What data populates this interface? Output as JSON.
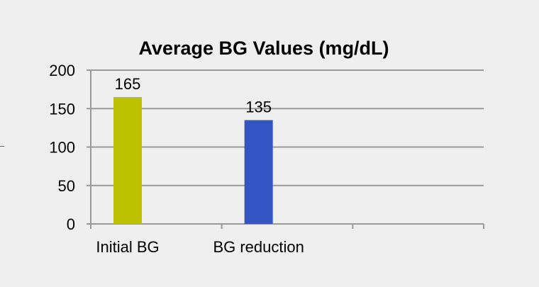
{
  "chart_data": {
    "type": "bar",
    "title": "Average BG Values (mg/dL)",
    "categories": [
      "Initial BG",
      "BG reduction",
      ""
    ],
    "values": [
      165,
      135,
      null
    ],
    "data_labels": [
      "165",
      "135",
      ""
    ],
    "bar_colors": [
      "#bcc200",
      "#3355c4"
    ],
    "ylim": [
      0,
      200
    ],
    "yticks": [
      0,
      50,
      100,
      150,
      200
    ],
    "ytick_labels": [
      "0",
      "50",
      "100",
      "150",
      "200"
    ],
    "grid": true,
    "legend": "none",
    "xlabel": "",
    "ylabel": ""
  },
  "colors": {
    "background": "#efefef",
    "gridline": "#9a9a9a",
    "axis": "#9a9a9a"
  }
}
